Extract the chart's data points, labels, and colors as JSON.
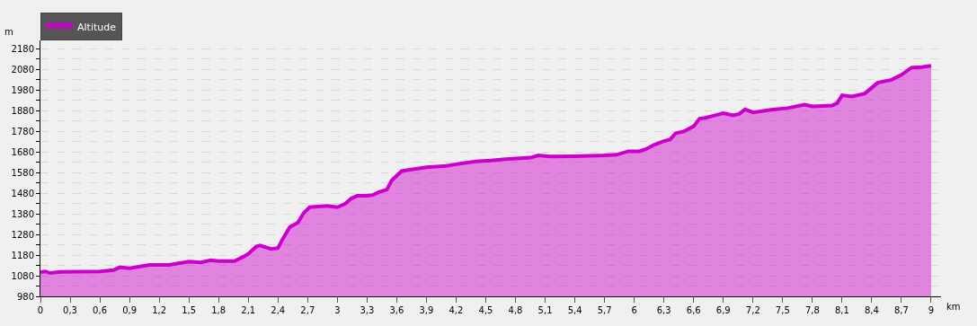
{
  "chart_data": {
    "type": "area",
    "xlabel": "km",
    "ylabel": "m",
    "legend": "top left",
    "grid": "y",
    "line_style": "solid",
    "marker": "none",
    "xlim": [
      0,
      9.1
    ],
    "ylim": [
      980,
      2220
    ],
    "xticks": [
      0,
      {
        "value": 0.3,
        "label": "0,3"
      },
      {
        "value": 0.6,
        "label": "0,6"
      },
      {
        "value": 0.9,
        "label": "0,9"
      },
      {
        "value": 1.2,
        "label": "1,2"
      },
      {
        "value": 1.5,
        "label": "1,5"
      },
      {
        "value": 1.8,
        "label": "1,8"
      },
      {
        "value": 2.1,
        "label": "2,1"
      },
      {
        "value": 2.4,
        "label": "2,4"
      },
      {
        "value": 2.7,
        "label": "2,7"
      },
      3,
      {
        "value": 3.3,
        "label": "3,3"
      },
      {
        "value": 3.6,
        "label": "3,6"
      },
      {
        "value": 3.9,
        "label": "3,9"
      },
      {
        "value": 4.2,
        "label": "4,2"
      },
      {
        "value": 4.5,
        "label": "4,5"
      },
      {
        "value": 4.8,
        "label": "4,8"
      },
      {
        "value": 5.1,
        "label": "5,1"
      },
      {
        "value": 5.4,
        "label": "5,4"
      },
      {
        "value": 5.7,
        "label": "5,7"
      },
      6,
      {
        "value": 6.3,
        "label": "6,3"
      },
      {
        "value": 6.6,
        "label": "6,6"
      },
      {
        "value": 6.9,
        "label": "6,9"
      },
      {
        "value": 7.2,
        "label": "7,2"
      },
      {
        "value": 7.5,
        "label": "7,5"
      },
      {
        "value": 7.8,
        "label": "7,8"
      },
      {
        "value": 8.1,
        "label": "8,1"
      },
      {
        "value": 8.4,
        "label": "8,4"
      },
      {
        "value": 8.7,
        "label": "8,7"
      },
      9
    ],
    "yticks": [
      980,
      {
        "value": 1030,
        "label": null
      },
      1080,
      {
        "value": 1130,
        "label": null
      },
      1180,
      {
        "value": 1230,
        "label": null
      },
      1280,
      {
        "value": 1330,
        "label": null
      },
      1380,
      {
        "value": 1430,
        "label": null
      },
      1480,
      {
        "value": 1530,
        "label": null
      },
      1580,
      {
        "value": 1630,
        "label": null
      },
      1680,
      {
        "value": 1730,
        "label": null
      },
      1780,
      {
        "value": 1830,
        "label": null
      },
      1880,
      {
        "value": 1930,
        "label": null
      },
      1980,
      {
        "value": 2030,
        "label": null
      },
      2080,
      {
        "value": 2130,
        "label": null
      },
      2180
    ],
    "x": [
      0,
      0.05,
      0.1,
      0.2,
      0.6,
      0.74,
      0.8,
      0.9,
      1.1,
      1.3,
      1.5,
      1.62,
      1.72,
      1.8,
      1.96,
      2.05,
      2.1,
      2.18,
      2.22,
      2.33,
      2.4,
      2.45,
      2.52,
      2.6,
      2.66,
      2.72,
      2.8,
      2.9,
      3.0,
      3.08,
      3.14,
      3.2,
      3.3,
      3.36,
      3.42,
      3.5,
      3.55,
      3.65,
      3.9,
      4.1,
      4.2,
      4.4,
      4.55,
      4.7,
      4.95,
      5.03,
      5.15,
      5.4,
      5.7,
      5.82,
      5.94,
      6.05,
      6.12,
      6.2,
      6.3,
      6.36,
      6.42,
      6.5,
      6.6,
      6.66,
      6.72,
      6.8,
      6.9,
      7.0,
      7.06,
      7.12,
      7.2,
      7.4,
      7.55,
      7.72,
      7.8,
      8.0,
      8.05,
      8.1,
      8.2,
      8.33,
      8.4,
      8.46,
      8.6,
      8.7,
      8.8,
      8.9,
      9.0
    ],
    "series": [
      {
        "name": "Altitude",
        "color": "#cc00cc",
        "values": [
          1097,
          1101,
          1093,
          1099,
          1101,
          1107,
          1121,
          1116,
          1132,
          1132,
          1149,
          1144,
          1155,
          1151,
          1151,
          1172,
          1186,
          1221,
          1227,
          1210,
          1214,
          1260,
          1316,
          1337,
          1384,
          1412,
          1415,
          1418,
          1412,
          1429,
          1454,
          1467,
          1467,
          1471,
          1485,
          1497,
          1542,
          1587,
          1605,
          1612,
          1620,
          1634,
          1638,
          1645,
          1652,
          1663,
          1658,
          1659,
          1663,
          1666,
          1683,
          1683,
          1694,
          1714,
          1732,
          1739,
          1771,
          1779,
          1804,
          1841,
          1845,
          1855,
          1867,
          1857,
          1864,
          1886,
          1871,
          1885,
          1892,
          1909,
          1900,
          1905,
          1916,
          1954,
          1948,
          1963,
          1991,
          2015,
          2029,
          2053,
          2088,
          2091,
          2097
        ]
      }
    ]
  }
}
